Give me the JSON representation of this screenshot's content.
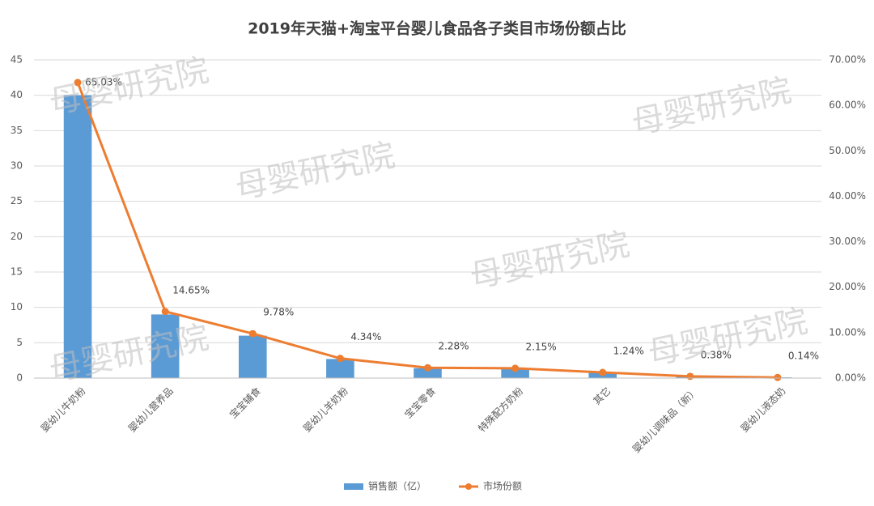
{
  "chart_data": {
    "type": "bar",
    "title": "2019年天猫+淘宝平台婴儿食品各子类目市场份额占比",
    "watermark": "母婴研究院",
    "categories": [
      "婴幼儿牛奶粉",
      "婴幼儿营养品",
      "宝宝辅食",
      "婴幼儿羊奶粉",
      "宝宝零食",
      "特殊配方奶粉",
      "其它",
      "婴幼儿调味品（新）",
      "婴幼儿液态奶"
    ],
    "series": [
      {
        "name": "销售额（亿）",
        "type": "bar",
        "color": "#5b9bd5",
        "values": [
          40,
          9,
          6,
          2.7,
          1.4,
          1.3,
          0.8,
          0.25,
          0.1
        ]
      },
      {
        "name": "市场份额",
        "type": "line",
        "axis": "y2",
        "color": "#ed7d31",
        "values": [
          65.03,
          14.65,
          9.78,
          4.34,
          2.28,
          2.15,
          1.24,
          0.38,
          0.14
        ],
        "value_labels": [
          "65.03%",
          "14.65%",
          "9.78%",
          "4.34%",
          "2.28%",
          "2.15%",
          "1.24%",
          "0.38%",
          "0.14%"
        ]
      }
    ],
    "ylim": [
      0,
      45
    ],
    "yticks": [
      0,
      5,
      10,
      15,
      20,
      25,
      30,
      35,
      40,
      45
    ],
    "y2lim": [
      0,
      70
    ],
    "y2ticks": [
      {
        "value": 0,
        "label": "0.00%"
      },
      {
        "value": 10,
        "label": "10.00%"
      },
      {
        "value": 20,
        "label": "20.00%"
      },
      {
        "value": 30,
        "label": "30.00%"
      },
      {
        "value": 40,
        "label": "40.00%"
      },
      {
        "value": 50,
        "label": "50.00%"
      },
      {
        "value": 60,
        "label": "60.00%"
      },
      {
        "value": 70,
        "label": "70.00%"
      }
    ],
    "grid": true,
    "legend": "bottom"
  }
}
